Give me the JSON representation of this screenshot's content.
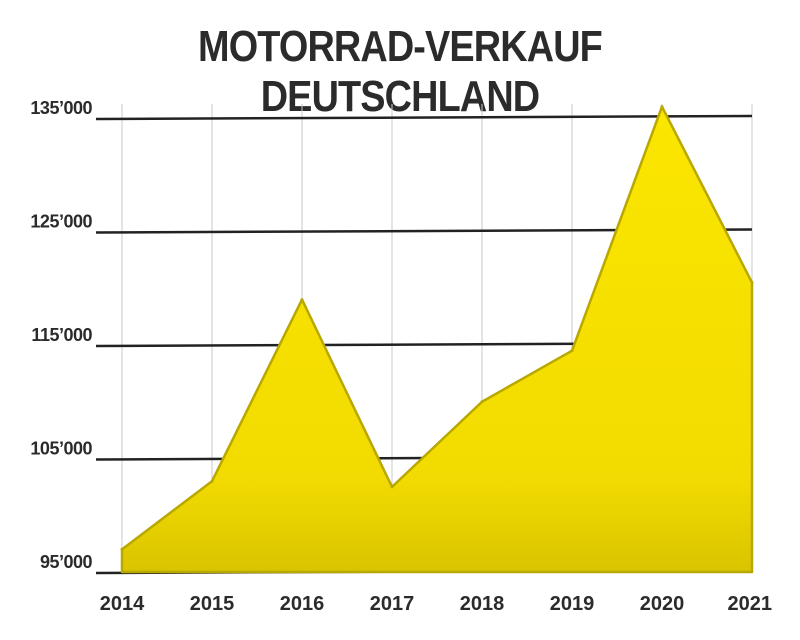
{
  "chart_data": {
    "type": "area",
    "title": "MOTORRAD-VERKAUF DEUTSCHLAND",
    "xlabel": "",
    "ylabel": "",
    "categories": [
      "2014",
      "2015",
      "2016",
      "2017",
      "2018",
      "2019",
      "2020",
      "2021"
    ],
    "values": [
      97000,
      103000,
      119000,
      102500,
      110000,
      114500,
      136000,
      120500
    ],
    "ylim": [
      95000,
      135000
    ],
    "yticks": [
      95000,
      105000,
      115000,
      125000,
      135000
    ],
    "ytick_labels": [
      "95’000",
      "105’000",
      "115’000",
      "125’000",
      "135’000"
    ],
    "fill_color": "#f7e000",
    "line_color": "#b8a800",
    "grid": true
  }
}
